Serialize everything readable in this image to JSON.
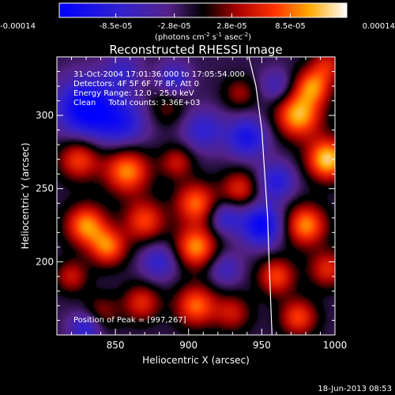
{
  "chart_data": {
    "type": "heatmap",
    "title": "Reconstructed RHESSI Image",
    "xlabel": "Heliocentric X (arcsec)",
    "ylabel": "Heliocentric Y (arcsec)",
    "xlim": [
      810,
      1000
    ],
    "ylim": [
      150,
      340
    ],
    "x_ticks": [
      850,
      900,
      950,
      1000
    ],
    "y_ticks": [
      200,
      250,
      300
    ],
    "colorbar": {
      "min": -0.00014,
      "max": 0.00014,
      "tick_labels": [
        "-0.00014",
        "-8.5e-05",
        "-2.8e-05",
        "2.8e-05",
        "8.5e-05",
        "0.00014"
      ],
      "tick_values": [
        -0.00014,
        -8.5e-05,
        -2.8e-05,
        2.8e-05,
        8.5e-05,
        0.00014
      ],
      "label_main": "(photons cm",
      "label_exp1": "-2",
      "label_mid": " s",
      "label_exp2": "-1",
      "label_end": " asec",
      "label_exp3": "-2",
      "label_close": ")"
    },
    "annotations": [
      "31-Oct-2004 17:01:36.000 to 17:05:54.000",
      "Detectors: 4F 5F 6F 7F 8F, Att 0",
      "Energy Range: 12.0 - 25.0 keV",
      "Clean     Total counts: 3.36E+03"
    ],
    "peak_label": "Position of Peak = [997,267]",
    "peak": [
      997,
      267
    ],
    "limb": [
      [
        940,
        345
      ],
      [
        946,
        320
      ],
      [
        950,
        290
      ],
      [
        952,
        260
      ],
      [
        954,
        230
      ],
      [
        955,
        200
      ],
      [
        956,
        175
      ],
      [
        957,
        150
      ]
    ],
    "blobs": [
      {
        "x": 830,
        "y": 305,
        "v": -1.0,
        "s": 14
      },
      {
        "x": 855,
        "y": 295,
        "v": -0.6,
        "s": 12
      },
      {
        "x": 825,
        "y": 270,
        "v": 0.7,
        "s": 10
      },
      {
        "x": 858,
        "y": 262,
        "v": 0.9,
        "s": 11
      },
      {
        "x": 885,
        "y": 305,
        "v": 0.3,
        "s": 9
      },
      {
        "x": 892,
        "y": 268,
        "v": 0.5,
        "s": 8
      },
      {
        "x": 910,
        "y": 290,
        "v": -0.5,
        "s": 10
      },
      {
        "x": 905,
        "y": 240,
        "v": 0.8,
        "s": 10
      },
      {
        "x": 935,
        "y": 315,
        "v": 0.4,
        "s": 8
      },
      {
        "x": 940,
        "y": 285,
        "v": -0.7,
        "s": 10
      },
      {
        "x": 935,
        "y": 250,
        "v": 0.6,
        "s": 9
      },
      {
        "x": 960,
        "y": 320,
        "v": -0.4,
        "s": 8
      },
      {
        "x": 975,
        "y": 300,
        "v": 1.0,
        "s": 11
      },
      {
        "x": 995,
        "y": 270,
        "v": 1.1,
        "s": 10
      },
      {
        "x": 985,
        "y": 320,
        "v": 0.8,
        "s": 9
      },
      {
        "x": 960,
        "y": 255,
        "v": -0.6,
        "s": 9
      },
      {
        "x": 830,
        "y": 225,
        "v": 0.9,
        "s": 10
      },
      {
        "x": 845,
        "y": 210,
        "v": 0.8,
        "s": 9
      },
      {
        "x": 870,
        "y": 228,
        "v": 0.7,
        "s": 10
      },
      {
        "x": 820,
        "y": 190,
        "v": 0.5,
        "s": 8
      },
      {
        "x": 880,
        "y": 200,
        "v": -0.5,
        "s": 9
      },
      {
        "x": 905,
        "y": 210,
        "v": 0.9,
        "s": 10
      },
      {
        "x": 925,
        "y": 195,
        "v": -0.4,
        "s": 8
      },
      {
        "x": 950,
        "y": 225,
        "v": -0.9,
        "s": 10
      },
      {
        "x": 980,
        "y": 225,
        "v": 0.9,
        "s": 10
      },
      {
        "x": 995,
        "y": 195,
        "v": 0.6,
        "s": 9
      },
      {
        "x": 960,
        "y": 190,
        "v": 0.7,
        "s": 9
      },
      {
        "x": 840,
        "y": 165,
        "v": 0.4,
        "s": 9
      },
      {
        "x": 868,
        "y": 172,
        "v": 0.6,
        "s": 9
      },
      {
        "x": 905,
        "y": 170,
        "v": 0.8,
        "s": 10
      },
      {
        "x": 930,
        "y": 165,
        "v": 0.5,
        "s": 9
      },
      {
        "x": 975,
        "y": 162,
        "v": 0.7,
        "s": 9
      },
      {
        "x": 830,
        "y": 155,
        "v": -0.6,
        "s": 8
      },
      {
        "x": 925,
        "y": 230,
        "v": -0.5,
        "s": 8
      },
      {
        "x": 890,
        "y": 325,
        "v": -0.5,
        "s": 8
      },
      {
        "x": 855,
        "y": 330,
        "v": -0.4,
        "s": 9
      },
      {
        "x": 995,
        "y": 335,
        "v": 0.5,
        "s": 8
      }
    ],
    "grid": false
  },
  "footer": {
    "date_stamp": "18-Jun-2013 08:53"
  }
}
